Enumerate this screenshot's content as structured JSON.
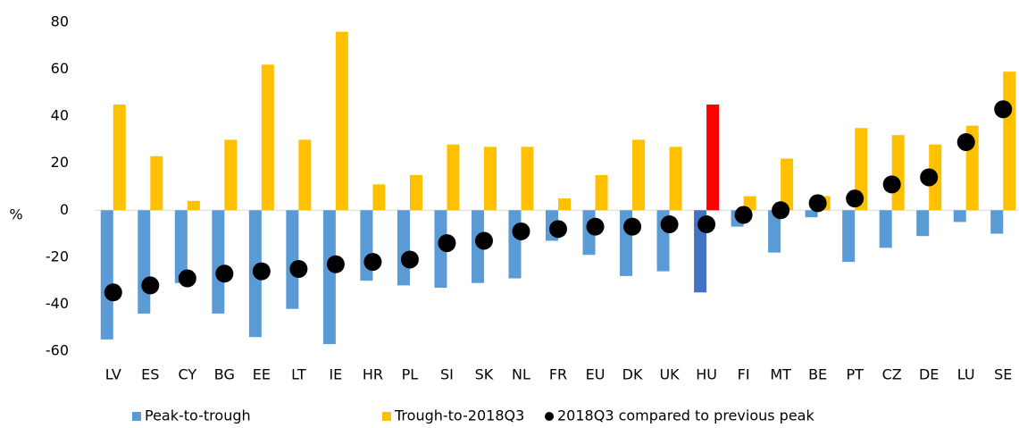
{
  "chart_data": {
    "type": "bar",
    "y_label": "%",
    "categories": [
      "LV",
      "ES",
      "CY",
      "BG",
      "EE",
      "LT",
      "IE",
      "HR",
      "PL",
      "SI",
      "SK",
      "NL",
      "FR",
      "EU",
      "DK",
      "UK",
      "HU",
      "FI",
      "MT",
      "BE",
      "PT",
      "CZ",
      "DE",
      "LU",
      "SE"
    ],
    "highlight_category": "HU",
    "series": [
      {
        "name": "Peak-to-trough",
        "type": "bar",
        "color": "#5b9bd5",
        "highlight_color": "#4472c4",
        "values": [
          -55,
          -44,
          -31,
          -44,
          -54,
          -42,
          -57,
          -30,
          -32,
          -33,
          -31,
          -29,
          -13,
          -19,
          -28,
          -26,
          -35,
          -7,
          -18,
          -3,
          -22,
          -16,
          -11,
          -5,
          -10
        ]
      },
      {
        "name": "Trough-to-2018Q3",
        "type": "bar",
        "color": "#ffc000",
        "highlight_color": "#ff0000",
        "values": [
          45,
          23,
          4,
          30,
          62,
          30,
          76,
          11,
          15,
          28,
          27,
          27,
          5,
          15,
          30,
          27,
          45,
          6,
          22,
          6,
          35,
          32,
          28,
          36,
          59
        ]
      },
      {
        "name": "2018Q3 compared to previous peak",
        "type": "dot",
        "color": "#000000",
        "values": [
          -35,
          -32,
          -29,
          -27,
          -26,
          -25,
          -23,
          -22,
          -21,
          -14,
          -13,
          -9,
          -8,
          -7,
          -7,
          -6,
          -6,
          -2,
          0,
          3,
          5,
          11,
          14,
          29,
          43
        ]
      }
    ],
    "ylim": [
      -60,
      80
    ],
    "yticks": [
      -60,
      -40,
      -20,
      0,
      20,
      40,
      60,
      80
    ],
    "grid": false
  }
}
